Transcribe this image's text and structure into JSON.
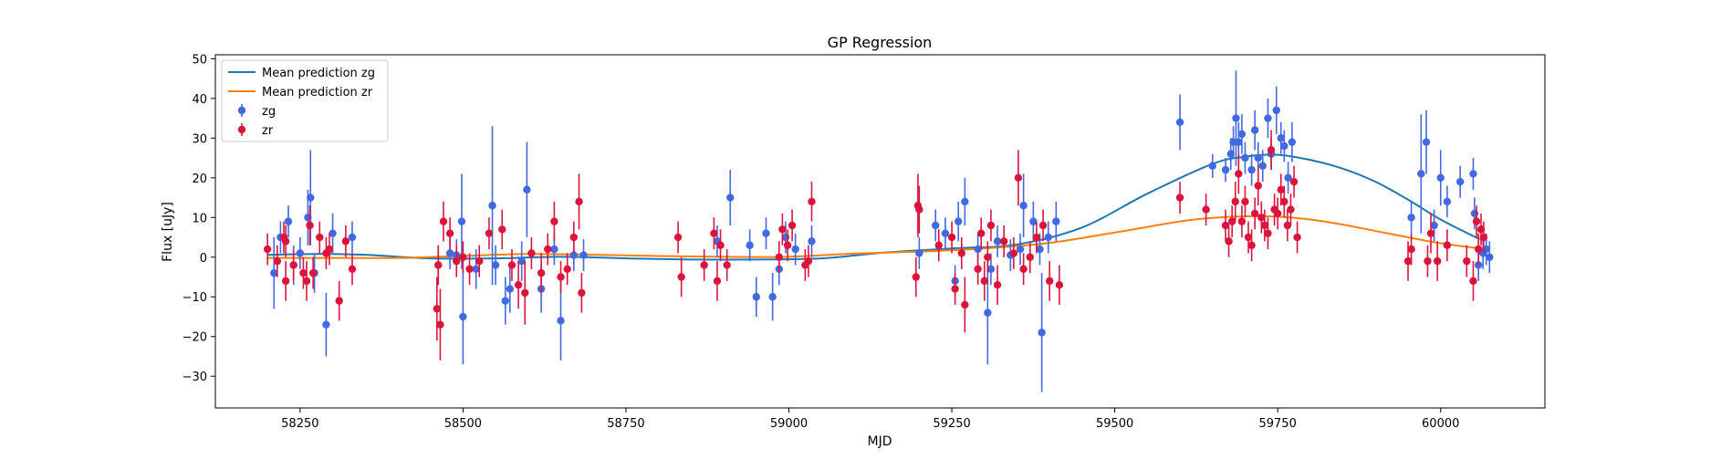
{
  "chart_data": {
    "type": "scatter",
    "title": "GP Regression",
    "xlabel": "MJD",
    "ylabel": "Flux [uJy]",
    "xlim": [
      58120,
      60160
    ],
    "ylim": [
      -38,
      51
    ],
    "grid": false,
    "legend_position": "top-left",
    "xticks": [
      58250,
      58500,
      58750,
      59000,
      59250,
      59500,
      59750,
      60000
    ],
    "yticks": [
      -30,
      -20,
      -10,
      0,
      10,
      20,
      30,
      40,
      50
    ],
    "colors": {
      "mean_zg": "#1f77b4",
      "mean_zr": "#ff7f0e",
      "zg": "#4169e1",
      "zr": "#dc143c"
    },
    "legend": [
      "Mean prediction zg",
      "Mean prediction zr",
      "zg",
      "zr"
    ],
    "lines": [
      {
        "name": "Mean prediction zg",
        "x": [
          58200,
          58280,
          58350,
          58450,
          58550,
          58650,
          58750,
          58850,
          58950,
          59050,
          59150,
          59250,
          59350,
          59450,
          59550,
          59650,
          59700,
          59750,
          59800,
          59850,
          59900,
          59950,
          60000,
          60060
        ],
        "y": [
          0.6,
          0.8,
          0.6,
          -0.3,
          -0.3,
          0.1,
          -0.3,
          -0.6,
          -0.6,
          -0.3,
          1.2,
          2.2,
          3.2,
          7.5,
          16,
          23.5,
          25.3,
          25.8,
          24.5,
          22.3,
          19,
          14.5,
          9.5,
          4.5
        ]
      },
      {
        "name": "Mean prediction zr",
        "x": [
          58200,
          58300,
          58400,
          58500,
          58600,
          58700,
          58800,
          58900,
          59000,
          59100,
          59200,
          59300,
          59400,
          59500,
          59600,
          59650,
          59700,
          59750,
          59800,
          59850,
          59900,
          59950,
          60000,
          60060
        ],
        "y": [
          -0.2,
          -0.2,
          -0.2,
          0.3,
          0.8,
          0.6,
          0.3,
          0.1,
          0.1,
          0.9,
          1.4,
          2.2,
          3.6,
          6.2,
          9.0,
          9.9,
          10.3,
          10.2,
          9.5,
          8.2,
          6.6,
          5.0,
          3.5,
          2.2
        ]
      }
    ],
    "series": [
      {
        "name": "zg",
        "points": [
          [
            58210,
            -4,
            9
          ],
          [
            58220,
            5,
            4
          ],
          [
            58232,
            9,
            4
          ],
          [
            58240,
            -2,
            5
          ],
          [
            58250,
            1,
            4
          ],
          [
            58262,
            10,
            7
          ],
          [
            58266,
            15,
            12
          ],
          [
            58272,
            -4,
            5
          ],
          [
            58290,
            -17,
            8
          ],
          [
            58300,
            6,
            5
          ],
          [
            58330,
            5,
            4
          ],
          [
            58462,
            -2,
            5
          ],
          [
            58480,
            1,
            4
          ],
          [
            58490,
            0.5,
            4
          ],
          [
            58498,
            9,
            12
          ],
          [
            58500,
            -15,
            12
          ],
          [
            58520,
            -3,
            5
          ],
          [
            58545,
            13,
            20
          ],
          [
            58550,
            -2,
            5
          ],
          [
            58565,
            -11,
            6
          ],
          [
            58572,
            -8,
            6
          ],
          [
            58590,
            -1,
            5
          ],
          [
            58598,
            17,
            12
          ],
          [
            58620,
            -8,
            6
          ],
          [
            58640,
            2,
            4
          ],
          [
            58650,
            -16,
            10
          ],
          [
            58670,
            0.5,
            4
          ],
          [
            58685,
            0.5,
            4
          ],
          [
            58890,
            4,
            4
          ],
          [
            58910,
            15,
            7
          ],
          [
            58940,
            3,
            4
          ],
          [
            58950,
            -10,
            5
          ],
          [
            58965,
            6,
            4
          ],
          [
            58975,
            -10,
            6
          ],
          [
            58985,
            -3,
            4
          ],
          [
            58995,
            5,
            4
          ],
          [
            59010,
            2,
            4
          ],
          [
            59035,
            4,
            4
          ],
          [
            59200,
            1,
            4
          ],
          [
            59225,
            8,
            4
          ],
          [
            59240,
            6,
            4
          ],
          [
            59255,
            -6,
            4
          ],
          [
            59260,
            9,
            5
          ],
          [
            59270,
            14,
            6
          ],
          [
            59290,
            2,
            4
          ],
          [
            59305,
            -14,
            13
          ],
          [
            59310,
            -3,
            4
          ],
          [
            59320,
            4,
            4
          ],
          [
            59340,
            0.5,
            4
          ],
          [
            59355,
            2,
            4
          ],
          [
            59360,
            13,
            8
          ],
          [
            59375,
            9,
            5
          ],
          [
            59385,
            2,
            4
          ],
          [
            59388,
            -19,
            15
          ],
          [
            59398,
            5,
            4
          ],
          [
            59410,
            9,
            5
          ],
          [
            59600,
            34,
            7
          ],
          [
            59650,
            23,
            3
          ],
          [
            59670,
            22,
            3
          ],
          [
            59678,
            26,
            4
          ],
          [
            59682,
            29,
            4
          ],
          [
            59686,
            35,
            12
          ],
          [
            59690,
            29,
            5
          ],
          [
            59695,
            31,
            5
          ],
          [
            59700,
            25,
            4
          ],
          [
            59710,
            22,
            4
          ],
          [
            59715,
            32,
            5
          ],
          [
            59720,
            25,
            4
          ],
          [
            59727,
            23,
            4
          ],
          [
            59735,
            35,
            5
          ],
          [
            59740,
            26,
            4
          ],
          [
            59748,
            37,
            6
          ],
          [
            59755,
            30,
            4
          ],
          [
            59760,
            28,
            4
          ],
          [
            59766,
            20,
            4
          ],
          [
            59772,
            29,
            5
          ],
          [
            59955,
            10,
            4
          ],
          [
            59970,
            21,
            15
          ],
          [
            59978,
            29,
            8
          ],
          [
            59990,
            8,
            4
          ],
          [
            60000,
            20,
            7
          ],
          [
            60010,
            14,
            4
          ],
          [
            60030,
            19,
            4
          ],
          [
            60050,
            21,
            4
          ],
          [
            60052,
            11,
            4
          ],
          [
            60058,
            -2,
            4
          ],
          [
            60065,
            1,
            4
          ],
          [
            60070,
            2,
            4
          ],
          [
            60075,
            0,
            4
          ]
        ]
      },
      {
        "name": "zr",
        "points": [
          [
            58200,
            2,
            4
          ],
          [
            58215,
            -1,
            4
          ],
          [
            58225,
            5,
            4
          ],
          [
            58228,
            4,
            4
          ],
          [
            58228,
            -6,
            5
          ],
          [
            58240,
            -2,
            4
          ],
          [
            58255,
            -4,
            4
          ],
          [
            58260,
            -6,
            5
          ],
          [
            58265,
            8,
            5
          ],
          [
            58270,
            -4,
            4
          ],
          [
            58280,
            5,
            4
          ],
          [
            58290,
            1,
            4
          ],
          [
            58295,
            2,
            4
          ],
          [
            58310,
            -11,
            5
          ],
          [
            58320,
            4,
            4
          ],
          [
            58330,
            -3,
            4
          ],
          [
            58460,
            -13,
            8
          ],
          [
            58462,
            -2,
            5
          ],
          [
            58465,
            -17,
            9
          ],
          [
            58470,
            9,
            5
          ],
          [
            58480,
            6,
            4
          ],
          [
            58490,
            -1,
            4
          ],
          [
            58500,
            0,
            4
          ],
          [
            58510,
            -3,
            4
          ],
          [
            58525,
            -1,
            4
          ],
          [
            58540,
            6,
            4
          ],
          [
            58560,
            7,
            5
          ],
          [
            58575,
            -2,
            4
          ],
          [
            58585,
            -7,
            6
          ],
          [
            58595,
            -9,
            8
          ],
          [
            58605,
            1,
            4
          ],
          [
            58620,
            -4,
            5
          ],
          [
            58630,
            2,
            4
          ],
          [
            58640,
            9,
            5
          ],
          [
            58650,
            -5,
            4
          ],
          [
            58660,
            -3,
            4
          ],
          [
            58670,
            5,
            4
          ],
          [
            58678,
            14,
            7
          ],
          [
            58682,
            -9,
            5
          ],
          [
            58830,
            5,
            4
          ],
          [
            58835,
            -5,
            5
          ],
          [
            58870,
            -2,
            4
          ],
          [
            58885,
            6,
            4
          ],
          [
            58890,
            -6,
            5
          ],
          [
            58895,
            3,
            4
          ],
          [
            58905,
            -2,
            4
          ],
          [
            58985,
            0,
            4
          ],
          [
            58990,
            7,
            4
          ],
          [
            58998,
            3,
            4
          ],
          [
            59005,
            8,
            4
          ],
          [
            59025,
            -2,
            4
          ],
          [
            59030,
            -1,
            4
          ],
          [
            59035,
            14,
            5
          ],
          [
            59195,
            -5,
            5
          ],
          [
            59198,
            13,
            8
          ],
          [
            59200,
            12,
            6
          ],
          [
            59230,
            3,
            4
          ],
          [
            59250,
            5,
            4
          ],
          [
            59255,
            -8,
            4
          ],
          [
            59265,
            1,
            4
          ],
          [
            59270,
            -12,
            7
          ],
          [
            59290,
            -3,
            4
          ],
          [
            59295,
            6,
            4
          ],
          [
            59300,
            -6,
            5
          ],
          [
            59305,
            0,
            4
          ],
          [
            59310,
            8,
            4
          ],
          [
            59320,
            -7,
            5
          ],
          [
            59330,
            4,
            4
          ],
          [
            59345,
            1,
            4
          ],
          [
            59352,
            20,
            7
          ],
          [
            59360,
            -3,
            4
          ],
          [
            59370,
            0,
            4
          ],
          [
            59380,
            5,
            4
          ],
          [
            59390,
            8,
            4
          ],
          [
            59400,
            -6,
            5
          ],
          [
            59415,
            -7,
            5
          ],
          [
            59600,
            15,
            4
          ],
          [
            59640,
            12,
            4
          ],
          [
            59670,
            8,
            4
          ],
          [
            59675,
            4,
            4
          ],
          [
            59680,
            9,
            4
          ],
          [
            59685,
            14,
            5
          ],
          [
            59690,
            21,
            5
          ],
          [
            59695,
            9,
            4
          ],
          [
            59700,
            14,
            4
          ],
          [
            59705,
            5,
            4
          ],
          [
            59710,
            3,
            4
          ],
          [
            59715,
            11,
            4
          ],
          [
            59720,
            18,
            5
          ],
          [
            59725,
            10,
            4
          ],
          [
            59730,
            8,
            4
          ],
          [
            59735,
            6,
            4
          ],
          [
            59740,
            27,
            5
          ],
          [
            59745,
            12,
            4
          ],
          [
            59750,
            11,
            4
          ],
          [
            59755,
            17,
            4
          ],
          [
            59760,
            14,
            4
          ],
          [
            59765,
            8,
            4
          ],
          [
            59770,
            12,
            4
          ],
          [
            59775,
            19,
            4
          ],
          [
            59780,
            5,
            4
          ],
          [
            59950,
            -1,
            5
          ],
          [
            59955,
            2,
            4
          ],
          [
            59980,
            -1,
            4
          ],
          [
            59985,
            6,
            5
          ],
          [
            59995,
            -1,
            5
          ],
          [
            60010,
            3,
            4
          ],
          [
            60040,
            -1,
            4
          ],
          [
            60050,
            -6,
            5
          ],
          [
            60055,
            9,
            4
          ],
          [
            60058,
            2,
            4
          ],
          [
            60062,
            7,
            4
          ],
          [
            60066,
            5,
            4
          ]
        ]
      }
    ]
  }
}
